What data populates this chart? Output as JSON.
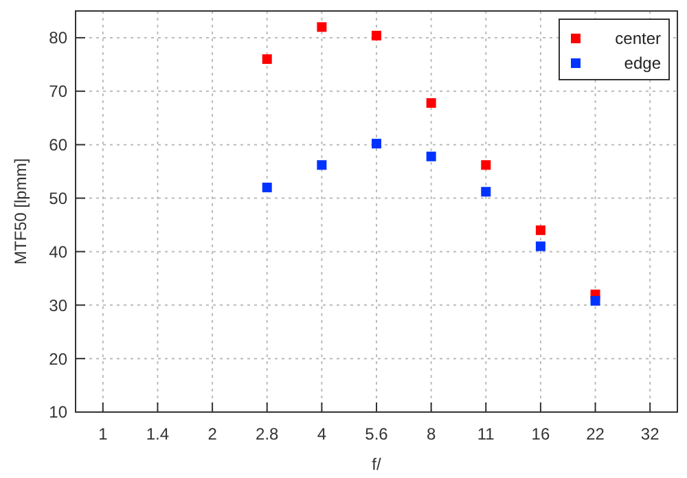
{
  "chart_data": {
    "type": "scatter",
    "xlabel": "f/",
    "ylabel": "MTF50 [lpmm]",
    "categories": [
      "1",
      "1.4",
      "2",
      "2.8",
      "4",
      "5.6",
      "8",
      "11",
      "16",
      "22",
      "32"
    ],
    "series": [
      {
        "name": "center",
        "color": "#ff0000",
        "values": [
          null,
          null,
          null,
          76,
          82,
          80.4,
          67.8,
          56.2,
          44,
          32,
          null
        ]
      },
      {
        "name": "edge",
        "color": "#0033ff",
        "values": [
          null,
          null,
          null,
          52,
          56.2,
          60.2,
          57.8,
          51.2,
          41,
          30.8,
          null
        ]
      }
    ],
    "ylim": [
      10,
      85
    ],
    "yticks": [
      10,
      20,
      30,
      40,
      50,
      60,
      70,
      80
    ],
    "grid": true,
    "legend": "top right",
    "marker": "square"
  }
}
